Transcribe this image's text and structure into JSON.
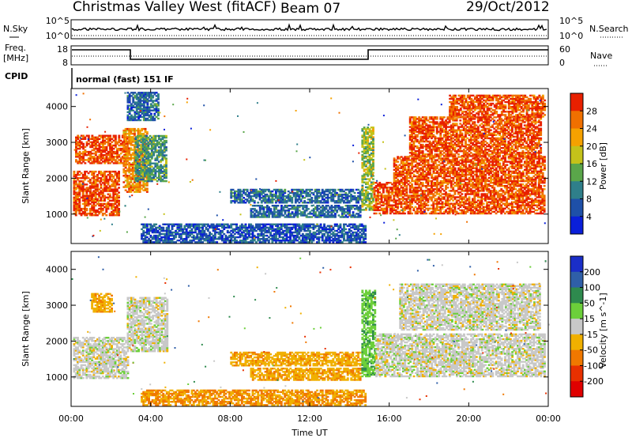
{
  "header": {
    "title": "Christmas Valley West (fitACF)",
    "beam": "Beam 07",
    "date": "29/Oct/2012"
  },
  "noise_panel": {
    "left_label": "N.Sky",
    "right_label": "N.Search",
    "left_ticks": [
      "10^5",
      "10^0"
    ],
    "right_ticks": [
      "10^5",
      "10^0"
    ]
  },
  "freq_panel": {
    "left_label_line1": "Freq.",
    "left_label_line2": "[MHz]",
    "left_ticks": [
      "18",
      "8"
    ],
    "right_label": "Nave",
    "right_ticks": [
      "60",
      "0"
    ]
  },
  "cpid": {
    "label": "CPID",
    "value": "normal (fast) 151 IF"
  },
  "chart_data": [
    {
      "type": "heatmap",
      "panel": "power",
      "ylabel": "Slant Range [km]",
      "xlabel": "",
      "ylim": [
        180,
        4500
      ],
      "xlim": [
        0,
        24
      ],
      "yticks": [
        1000,
        2000,
        3000,
        4000
      ],
      "colorbar": {
        "label": "Power [dB]",
        "ticks": [
          "4",
          "8",
          "12",
          "16",
          "20",
          "24",
          "28"
        ],
        "colors": [
          "#0a1fd9",
          "#1e50a8",
          "#2f7f8a",
          "#5aa64a",
          "#c4c21a",
          "#f5a100",
          "#f07000",
          "#e82000"
        ]
      },
      "regions": [
        {
          "t0": 0.1,
          "t1": 2.4,
          "r0": 950,
          "r1": 2200,
          "level": 28
        },
        {
          "t0": 0.2,
          "t1": 2.8,
          "r0": 2400,
          "r1": 3200,
          "level": 28
        },
        {
          "t0": 2.6,
          "t1": 3.8,
          "r0": 1600,
          "r1": 3400,
          "level": 24
        },
        {
          "t0": 3.2,
          "t1": 4.8,
          "r0": 1900,
          "r1": 3200,
          "level": 12
        },
        {
          "t0": 2.8,
          "t1": 4.4,
          "r0": 3600,
          "r1": 4400,
          "level": 8
        },
        {
          "t0": 3.5,
          "t1": 14.8,
          "r0": 200,
          "r1": 700,
          "level": 6
        },
        {
          "t0": 8.0,
          "t1": 14.6,
          "r0": 1300,
          "r1": 1700,
          "level": 8
        },
        {
          "t0": 9.0,
          "t1": 14.5,
          "r0": 900,
          "r1": 1250,
          "level": 8
        },
        {
          "t0": 14.6,
          "t1": 15.2,
          "r0": 1100,
          "r1": 3400,
          "level": 16
        },
        {
          "t0": 15.2,
          "t1": 23.8,
          "r0": 1000,
          "r1": 1900,
          "level": 28
        },
        {
          "t0": 16.2,
          "t1": 23.8,
          "r0": 1900,
          "r1": 2600,
          "level": 28
        },
        {
          "t0": 17.0,
          "t1": 23.6,
          "r0": 2600,
          "r1": 3700,
          "level": 28
        },
        {
          "t0": 19.0,
          "t1": 23.8,
          "r0": 3700,
          "r1": 4300,
          "level": 28
        }
      ]
    },
    {
      "type": "heatmap",
      "panel": "velocity",
      "ylabel": "Slant Range [km]",
      "xlabel": "Time UT",
      "ylim": [
        180,
        4500
      ],
      "xlim": [
        0,
        24
      ],
      "yticks": [
        1000,
        2000,
        3000,
        4000
      ],
      "xticks": [
        "00:00",
        "04:00",
        "08:00",
        "12:00",
        "16:00",
        "20:00",
        "00:00"
      ],
      "colorbar": {
        "label": "Velocity [m s^-1]",
        "ticks": [
          "200",
          "100",
          "50",
          "15",
          "-15",
          "-50",
          "-100",
          "-200"
        ],
        "colors": [
          "#1a2ec8",
          "#2f5fa8",
          "#2e8a4e",
          "#6ccf3a",
          "#c8c8c8",
          "#f0b000",
          "#f07800",
          "#e83000",
          "#e00000"
        ]
      },
      "regions": [
        {
          "t0": 0.1,
          "t1": 2.8,
          "r0": 950,
          "r1": 2100,
          "level": 0
        },
        {
          "t0": 1.0,
          "t1": 2.0,
          "r0": 2800,
          "r1": 3300,
          "level": -40
        },
        {
          "t0": 2.8,
          "t1": 4.8,
          "r0": 1700,
          "r1": 3200,
          "level": 0
        },
        {
          "t0": 3.5,
          "t1": 14.8,
          "r0": 200,
          "r1": 650,
          "level": -50
        },
        {
          "t0": 8.0,
          "t1": 14.6,
          "r0": 1300,
          "r1": 1700,
          "level": -40
        },
        {
          "t0": 9.0,
          "t1": 14.5,
          "r0": 900,
          "r1": 1250,
          "level": -40
        },
        {
          "t0": 14.6,
          "t1": 15.3,
          "r0": 1000,
          "r1": 3400,
          "level": 40
        },
        {
          "t0": 15.3,
          "t1": 23.8,
          "r0": 1000,
          "r1": 2200,
          "level": 0
        },
        {
          "t0": 16.5,
          "t1": 23.6,
          "r0": 2300,
          "r1": 3600,
          "level": 0
        }
      ]
    }
  ]
}
